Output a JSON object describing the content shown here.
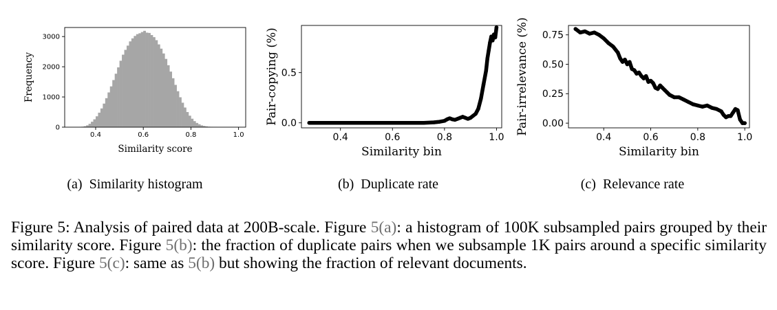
{
  "figure": {
    "subcaptions": {
      "a_tag": "(a)",
      "a_text": "Similarity histogram",
      "b_tag": "(b)",
      "b_text": "Duplicate rate",
      "c_tag": "(c)",
      "c_text": "Relevance rate"
    },
    "caption": {
      "label": "Figure 5:",
      "s1": " Analysis of paired data at 200B-scale. Figure ",
      "ref_a": "5(a)",
      "s2": ": a histogram of 100K subsampled pairs grouped by their similarity score. Figure ",
      "ref_b": "5(b)",
      "s3": ": the fraction of duplicate pairs when we subsample 1K pairs around a specific similarity score. Figure ",
      "ref_c": "5(c)",
      "s4": ": same as ",
      "ref_b2": "5(b)",
      "s5": " but showing the fraction of relevant documents."
    }
  },
  "chart_data": [
    {
      "type": "bar",
      "id": "histogram",
      "xlabel": "Similarity score",
      "ylabel": "Frequency",
      "xlim": [
        0.27,
        1.03
      ],
      "ylim": [
        0,
        3300
      ],
      "xticks": [
        "0.4",
        "0.6",
        "0.8",
        "1.0"
      ],
      "xtick_values": [
        0.4,
        0.6,
        0.8,
        1.0
      ],
      "yticks": [
        "0",
        "1000",
        "2000",
        "3000"
      ],
      "ytick_values": [
        0,
        1000,
        2000,
        3000
      ],
      "bar_color": "#a6a6a6",
      "bin_width": 0.01,
      "bin_starts": [
        0.33,
        0.34,
        0.35,
        0.36,
        0.37,
        0.38,
        0.39,
        0.4,
        0.41,
        0.42,
        0.43,
        0.44,
        0.45,
        0.46,
        0.47,
        0.48,
        0.49,
        0.5,
        0.51,
        0.52,
        0.53,
        0.54,
        0.55,
        0.56,
        0.57,
        0.58,
        0.59,
        0.6,
        0.61,
        0.62,
        0.63,
        0.64,
        0.65,
        0.66,
        0.67,
        0.68,
        0.69,
        0.7,
        0.71,
        0.72,
        0.73,
        0.74,
        0.75,
        0.76,
        0.77,
        0.78,
        0.79,
        0.8,
        0.81,
        0.82,
        0.83,
        0.84,
        0.85,
        0.86,
        0.87,
        0.88,
        0.89,
        0.9
      ],
      "values": [
        5,
        15,
        30,
        60,
        110,
        180,
        260,
        360,
        480,
        620,
        780,
        960,
        1150,
        1350,
        1560,
        1770,
        1980,
        2200,
        2400,
        2560,
        2700,
        2840,
        2940,
        3020,
        3080,
        3110,
        3150,
        3190,
        3130,
        3120,
        3050,
        2980,
        2880,
        2740,
        2600,
        2440,
        2260,
        2050,
        1840,
        1620,
        1400,
        1190,
        990,
        810,
        650,
        500,
        380,
        280,
        200,
        140,
        95,
        60,
        40,
        25,
        15,
        10,
        6,
        3
      ]
    },
    {
      "type": "line",
      "id": "duplicate-rate",
      "xlabel": "Similarity bin",
      "ylabel": "Pair-copying (%)",
      "xlim": [
        0.25,
        1.02
      ],
      "ylim": [
        -0.05,
        0.97
      ],
      "xticks": [
        "0.4",
        "0.6",
        "0.8",
        "1.0"
      ],
      "xtick_values": [
        0.4,
        0.6,
        0.8,
        1.0
      ],
      "yticks": [
        "0.0",
        "0.5"
      ],
      "ytick_values": [
        0.0,
        0.5
      ],
      "line_color": "#000000",
      "x": [
        0.28,
        0.32,
        0.36,
        0.4,
        0.44,
        0.48,
        0.52,
        0.56,
        0.6,
        0.64,
        0.68,
        0.72,
        0.76,
        0.78,
        0.8,
        0.81,
        0.82,
        0.83,
        0.84,
        0.85,
        0.86,
        0.87,
        0.88,
        0.89,
        0.9,
        0.91,
        0.92,
        0.93,
        0.94,
        0.95,
        0.96,
        0.965,
        0.97,
        0.975,
        0.98,
        0.985,
        0.99,
        0.995,
        1.0
      ],
      "y": [
        0.0,
        0.0,
        0.0,
        0.0,
        0.0,
        0.0,
        0.0,
        0.0,
        0.0,
        0.0,
        0.0,
        0.0,
        0.005,
        0.01,
        0.02,
        0.035,
        0.045,
        0.035,
        0.03,
        0.04,
        0.05,
        0.06,
        0.05,
        0.04,
        0.05,
        0.07,
        0.09,
        0.14,
        0.24,
        0.38,
        0.52,
        0.64,
        0.72,
        0.8,
        0.86,
        0.82,
        0.88,
        0.85,
        0.95
      ]
    },
    {
      "type": "line",
      "id": "relevance-rate",
      "xlabel": "Similarity bin",
      "ylabel": "Pair-irrelevance (%)",
      "xlim": [
        0.25,
        1.02
      ],
      "ylim": [
        -0.04,
        0.83
      ],
      "xticks": [
        "0.4",
        "0.6",
        "0.8",
        "1.0"
      ],
      "xtick_values": [
        0.4,
        0.6,
        0.8,
        1.0
      ],
      "yticks": [
        "0.00",
        "0.25",
        "0.50",
        "0.75"
      ],
      "ytick_values": [
        0.0,
        0.25,
        0.5,
        0.75
      ],
      "line_color": "#000000",
      "x": [
        0.28,
        0.3,
        0.32,
        0.34,
        0.36,
        0.38,
        0.4,
        0.42,
        0.44,
        0.46,
        0.47,
        0.48,
        0.49,
        0.5,
        0.51,
        0.52,
        0.53,
        0.54,
        0.55,
        0.56,
        0.57,
        0.58,
        0.59,
        0.6,
        0.61,
        0.62,
        0.63,
        0.64,
        0.65,
        0.66,
        0.67,
        0.68,
        0.7,
        0.72,
        0.74,
        0.76,
        0.78,
        0.8,
        0.82,
        0.84,
        0.86,
        0.88,
        0.9,
        0.91,
        0.92,
        0.93,
        0.94,
        0.95,
        0.96,
        0.97,
        0.98,
        0.99,
        1.0
      ],
      "y": [
        0.8,
        0.77,
        0.78,
        0.76,
        0.77,
        0.75,
        0.72,
        0.68,
        0.65,
        0.6,
        0.55,
        0.52,
        0.54,
        0.5,
        0.52,
        0.46,
        0.45,
        0.42,
        0.43,
        0.4,
        0.38,
        0.4,
        0.35,
        0.36,
        0.34,
        0.3,
        0.29,
        0.32,
        0.3,
        0.28,
        0.26,
        0.24,
        0.22,
        0.22,
        0.2,
        0.18,
        0.16,
        0.15,
        0.14,
        0.15,
        0.13,
        0.12,
        0.1,
        0.07,
        0.05,
        0.06,
        0.06,
        0.09,
        0.12,
        0.11,
        0.03,
        0.0,
        0.0
      ]
    }
  ]
}
